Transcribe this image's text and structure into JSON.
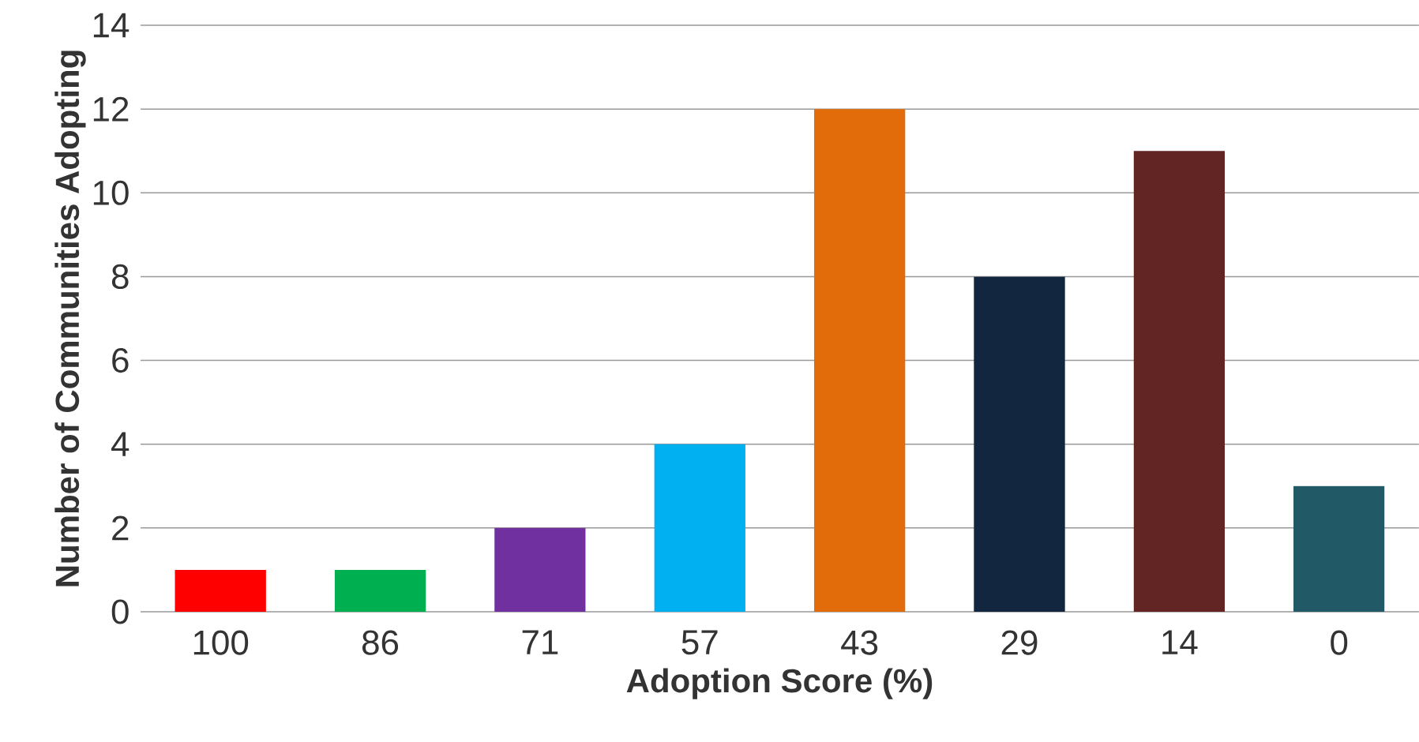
{
  "chart_data": {
    "type": "bar",
    "xlabel": "Adoption Score (%)",
    "ylabel": "Number of Communities Adopting",
    "categories": [
      "100",
      "86",
      "71",
      "57",
      "43",
      "29",
      "14",
      "0"
    ],
    "values": [
      1,
      1,
      2,
      4,
      12,
      8,
      11,
      3
    ],
    "colors": [
      "#ff0000",
      "#00b050",
      "#7030a0",
      "#00b0f0",
      "#e36c0a",
      "#122640",
      "#632523",
      "#215967"
    ],
    "ylim": [
      0,
      14
    ],
    "yticks": [
      0,
      2,
      4,
      6,
      8,
      10,
      12,
      14
    ],
    "grid": "y"
  }
}
